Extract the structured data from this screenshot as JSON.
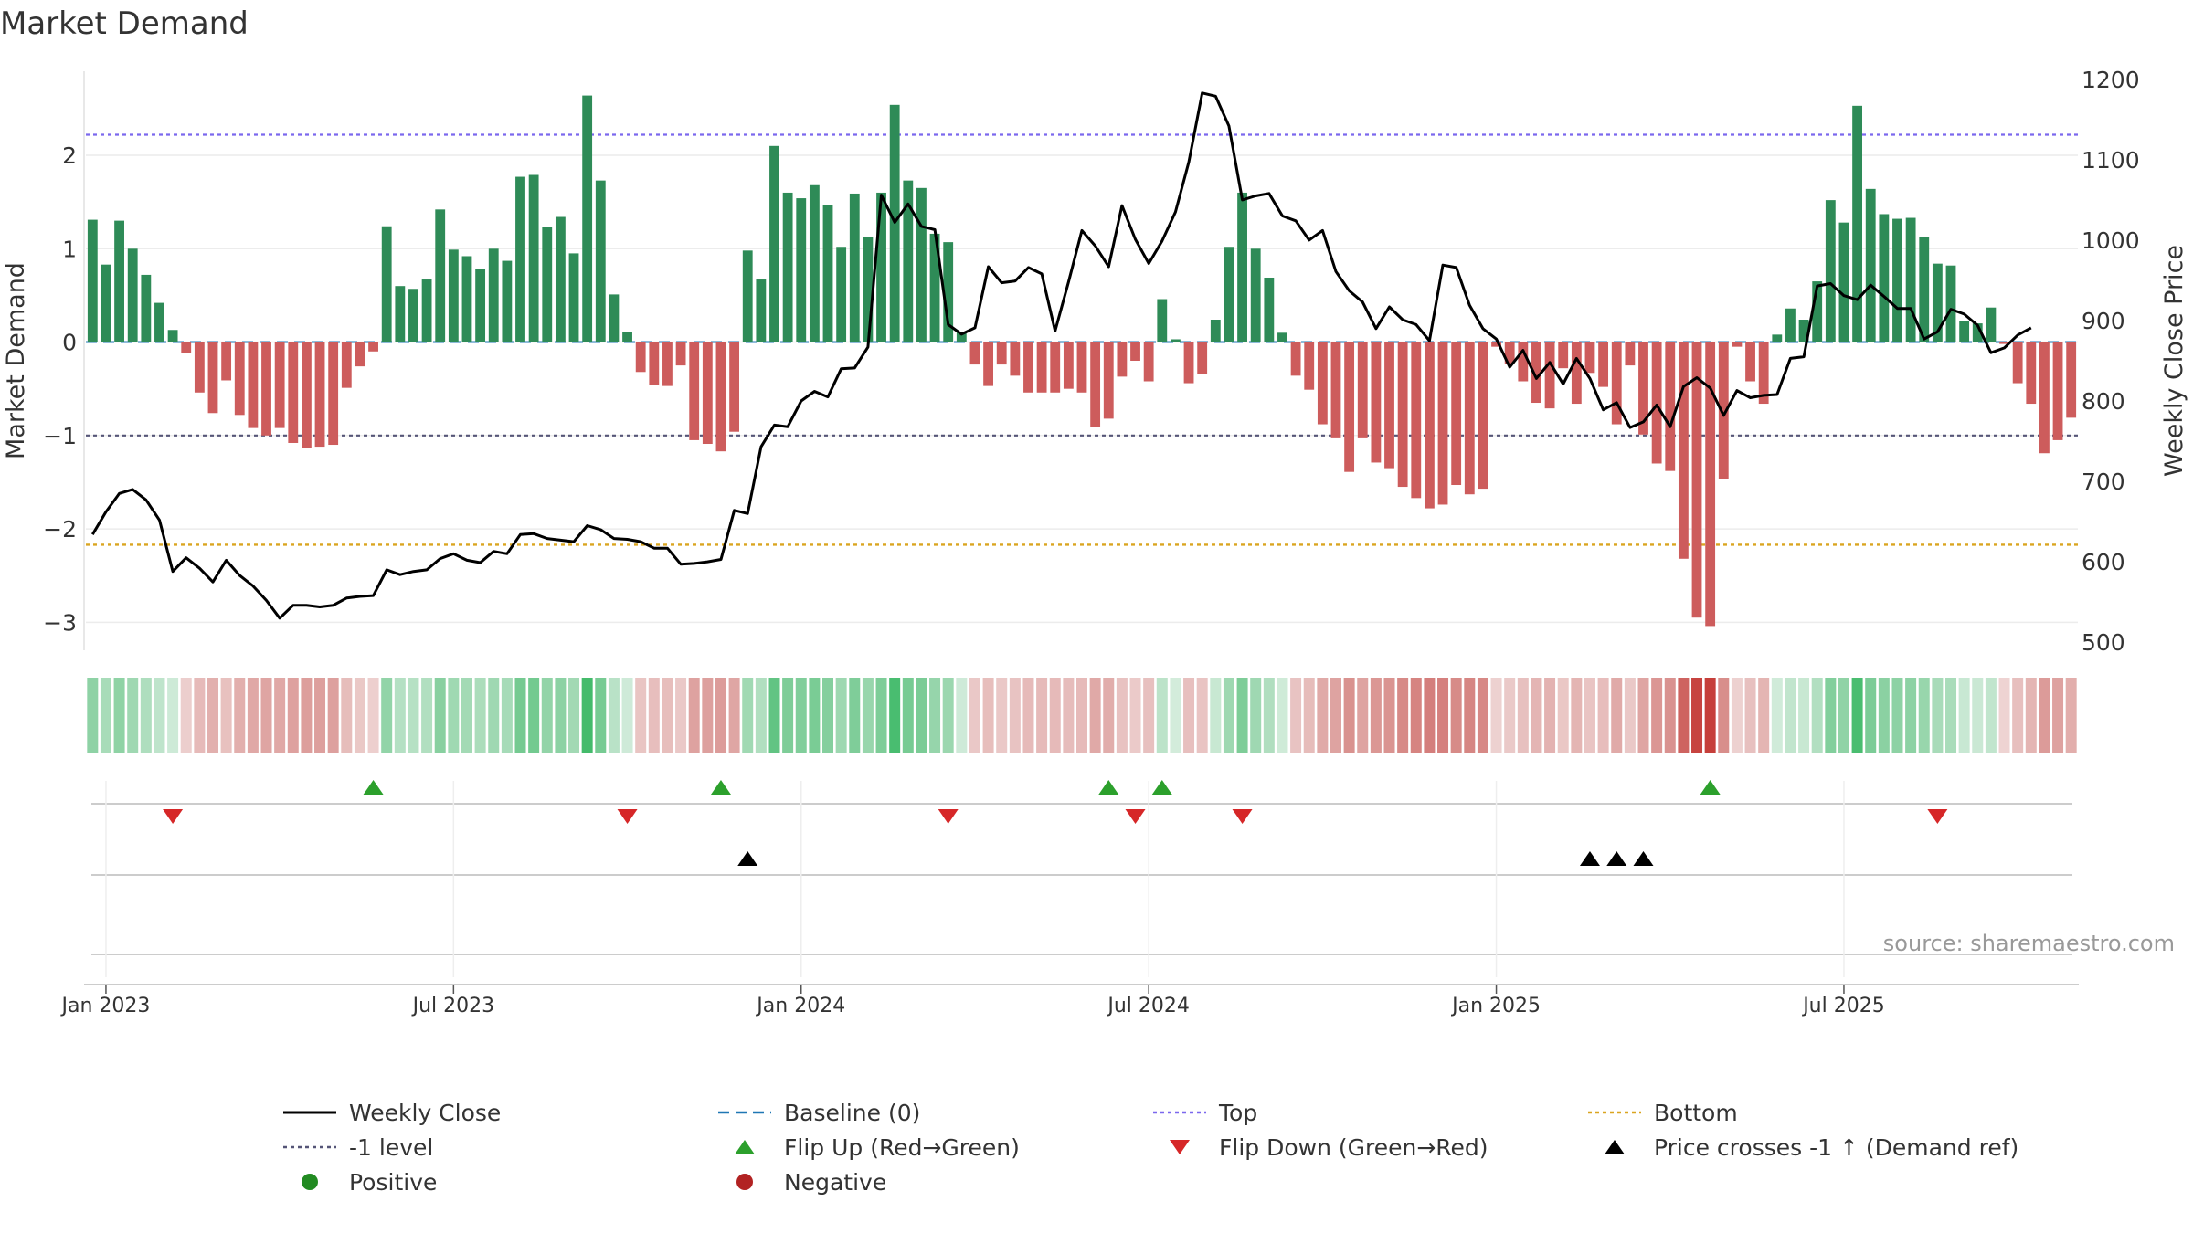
{
  "title": "Market Demand",
  "source": "source: sharemaestro.com",
  "chart_data": {
    "type": "bar",
    "ylabel_left": "Market Demand",
    "ylabel_right": "Weekly Close Price",
    "ylim_left": [
      -3.3,
      2.9
    ],
    "ylim_right": [
      490,
      1210
    ],
    "yticks_left": [
      -3,
      -2,
      -1,
      0,
      1,
      2
    ],
    "yticks_left_labels": [
      "−3",
      "−2",
      "−1",
      "0",
      "1",
      "2"
    ],
    "yticks_right": [
      500,
      600,
      700,
      800,
      900,
      1000,
      1100,
      1200
    ],
    "xticks": [
      {
        "label": "Jan 2023",
        "week": 2
      },
      {
        "label": "Jul 2023",
        "week": 28
      },
      {
        "label": "Jan 2024",
        "week": 54
      },
      {
        "label": "Jul 2024",
        "week": 80
      },
      {
        "label": "Jan 2025",
        "week": 106
      },
      {
        "label": "Jul 2025",
        "week": 132
      }
    ],
    "levels": {
      "top": 2.22,
      "bottom": -2.17,
      "minus_one": -1.0,
      "baseline": 0
    },
    "colors": {
      "positive": "#2e8b57",
      "negative": "#cd5c5c",
      "close": "#000000",
      "top": "#7b68ee",
      "bottom": "#daa520",
      "baseline": "#1f77b4",
      "minus_one": "#555577",
      "flip_up": "#2ca02c",
      "flip_down": "#d62728",
      "price_cross": "#000000"
    },
    "demand": [
      1.31,
      0.83,
      1.3,
      1.0,
      0.72,
      0.42,
      0.13,
      -0.12,
      -0.54,
      -0.76,
      -0.41,
      -0.78,
      -0.92,
      -1.0,
      -0.92,
      -1.08,
      -1.13,
      -1.12,
      -1.1,
      -0.49,
      -0.26,
      -0.1,
      1.24,
      0.6,
      0.57,
      0.67,
      1.42,
      0.99,
      0.92,
      0.78,
      1.0,
      0.87,
      1.77,
      1.79,
      1.23,
      1.34,
      0.95,
      2.64,
      1.73,
      0.51,
      0.11,
      -0.32,
      -0.46,
      -0.47,
      -0.25,
      -1.05,
      -1.09,
      -1.17,
      -0.96,
      0.98,
      0.67,
      2.1,
      1.6,
      1.54,
      1.68,
      1.47,
      1.02,
      1.59,
      1.13,
      1.6,
      2.54,
      1.73,
      1.65,
      1.16,
      1.07,
      0.11,
      -0.24,
      -0.47,
      -0.24,
      -0.36,
      -0.54,
      -0.54,
      -0.54,
      -0.5,
      -0.54,
      -0.91,
      -0.82,
      -0.37,
      -0.2,
      -0.42,
      0.46,
      0.03,
      -0.44,
      -0.34,
      0.24,
      1.02,
      1.6,
      1.0,
      0.69,
      0.1,
      -0.36,
      -0.51,
      -0.88,
      -1.03,
      -1.39,
      -1.03,
      -1.29,
      -1.35,
      -1.55,
      -1.67,
      -1.78,
      -1.74,
      -1.53,
      -1.63,
      -1.57,
      -0.05,
      -0.23,
      -0.42,
      -0.65,
      -0.71,
      -0.28,
      -0.66,
      -0.33,
      -0.48,
      -0.88,
      -0.25,
      -0.99,
      -1.3,
      -1.38,
      -2.32,
      -2.95,
      -3.04,
      -1.47,
      -0.05,
      -0.42,
      -0.66,
      0.08,
      0.36,
      0.24,
      0.65,
      1.52,
      1.28,
      2.53,
      1.64,
      1.37,
      1.32,
      1.33,
      1.13,
      0.84,
      0.82,
      0.23,
      0.2,
      0.37,
      -0.02,
      -0.44,
      -0.66,
      -1.19,
      -1.05,
      -0.81
    ],
    "close": [
      634,
      662,
      685,
      690,
      677,
      652,
      588,
      605,
      592,
      575,
      602,
      583,
      570,
      552,
      530,
      546,
      546,
      544,
      546,
      555,
      557,
      558,
      590,
      584,
      588,
      590,
      604,
      610,
      602,
      599,
      613,
      610,
      634,
      635,
      629,
      627,
      625,
      645,
      640,
      629,
      628,
      625,
      617,
      617,
      597,
      598,
      600,
      603,
      664,
      660,
      743,
      770,
      768,
      800,
      812,
      805,
      840,
      841,
      867,
      1056,
      1022,
      1045,
      1017,
      1013,
      895,
      883,
      891,
      967,
      947,
      949,
      966,
      958,
      887,
      948,
      1012,
      993,
      967,
      1043,
      1001,
      971,
      999,
      1035,
      1097,
      1183,
      1179,
      1142,
      1050,
      1055,
      1058,
      1030,
      1024,
      1000,
      1012,
      961,
      937,
      923,
      890,
      917,
      901,
      895,
      875,
      969,
      966,
      919,
      890,
      877,
      842,
      863,
      828,
      848,
      821,
      853,
      828,
      789,
      798,
      767,
      774,
      795,
      768,
      818,
      829,
      816,
      782,
      813,
      804,
      807,
      808,
      853,
      855,
      943,
      946,
      931,
      926,
      944,
      930,
      915,
      915,
      877,
      886,
      914,
      908,
      894,
      860,
      866,
      882,
      891
    ],
    "flip_up_weeks": [
      22,
      48,
      77,
      81,
      122
    ],
    "flip_down_weeks": [
      7,
      41,
      65,
      79,
      87,
      139
    ],
    "price_cross_weeks": [
      50,
      113,
      115,
      117
    ],
    "legend": [
      {
        "label": "Weekly Close",
        "kind": "line",
        "color": "#000000"
      },
      {
        "label": "Baseline (0)",
        "kind": "dash",
        "color": "#1f77b4"
      },
      {
        "label": "Top",
        "kind": "dot",
        "color": "#7b68ee"
      },
      {
        "label": "Bottom",
        "kind": "dot",
        "color": "#daa520"
      },
      {
        "label": "-1 level",
        "kind": "dot",
        "color": "#555577"
      },
      {
        "label": "Flip Up (Red→Green)",
        "kind": "tri-up",
        "color": "#2ca02c"
      },
      {
        "label": "Flip Down (Green→Red)",
        "kind": "tri-down",
        "color": "#d62728"
      },
      {
        "label": "Price crosses -1 ↑ (Demand ref)",
        "kind": "tri-up",
        "color": "#000000"
      },
      {
        "label": "Positive",
        "kind": "circle",
        "color": "#228b22"
      },
      {
        "label": "Negative",
        "kind": "circle",
        "color": "#b22222"
      }
    ]
  }
}
